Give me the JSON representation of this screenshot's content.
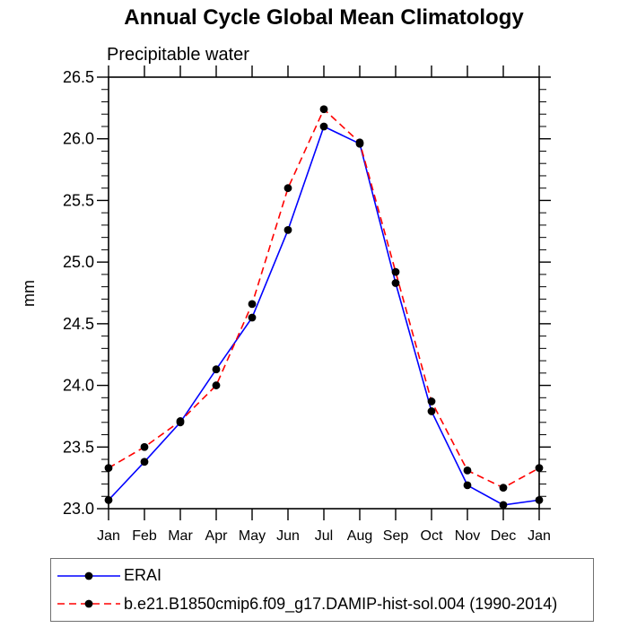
{
  "title": "Annual Cycle Global Mean Climatology",
  "subtitle": "Precipitable water",
  "ylabel": "mm",
  "chart_data": {
    "type": "line",
    "title": "Annual Cycle Global Mean Climatology",
    "subtitle": "Precipitable water",
    "xlabel": "",
    "ylabel": "mm",
    "categories": [
      "Jan",
      "Feb",
      "Mar",
      "Apr",
      "May",
      "Jun",
      "Jul",
      "Aug",
      "Sep",
      "Oct",
      "Nov",
      "Dec",
      "Jan"
    ],
    "series": [
      {
        "name": "ERAI",
        "color": "#0000ff",
        "line_style": "solid",
        "marker": "black-filled-circle",
        "values": [
          23.07,
          23.38,
          23.7,
          24.13,
          24.55,
          25.26,
          26.1,
          25.96,
          24.83,
          23.79,
          23.19,
          23.03,
          23.07
        ]
      },
      {
        "name": "b.e21.B1850cmip6.f09_g17.DAMIP-hist-sol.004 (1990-2014)",
        "color": "#ff0000",
        "line_style": "dashed",
        "marker": "black-filled-circle",
        "values": [
          23.33,
          23.5,
          23.71,
          24.0,
          24.66,
          25.6,
          26.24,
          25.97,
          24.92,
          23.87,
          23.31,
          23.17,
          23.33
        ]
      }
    ],
    "ylim": [
      23.0,
      26.5
    ],
    "ytick_major": 0.5,
    "ytick_minor": 0.1,
    "grid": false,
    "axes_box": true,
    "legend_position": "bottom-left",
    "marker_color": "#000000"
  }
}
